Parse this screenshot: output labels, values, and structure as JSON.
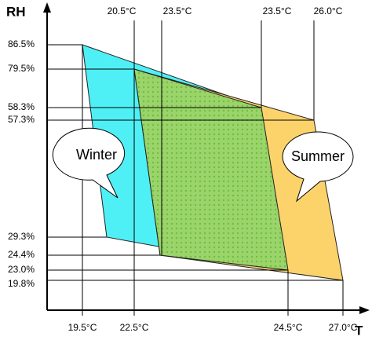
{
  "axes": {
    "y_label": "RH",
    "x_label": "T"
  },
  "rh_labels": [
    "86.5%",
    "79.5%",
    "58.3%",
    "57.3%",
    "29.3%",
    "24.4%",
    "23.0%",
    "19.8%"
  ],
  "top_temp_labels": [
    "20.5°C",
    "23.5°C",
    "23.5°C",
    "26.0°C"
  ],
  "bottom_temp_labels": [
    "19.5°C",
    "22.5°C",
    "24.5°C",
    "27.0°C"
  ],
  "zones": {
    "winter": "Winter",
    "summer": "Summer"
  }
}
